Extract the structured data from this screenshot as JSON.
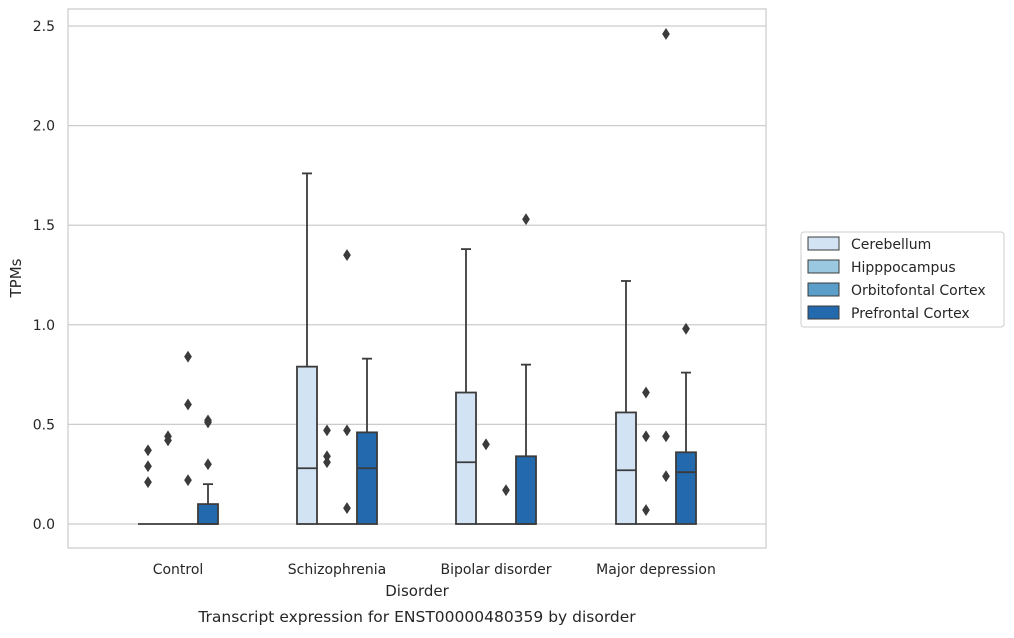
{
  "caption": "Transcript expression for ENST00000480359 by disorder",
  "chart_data": {
    "type": "box",
    "xlabel": "Disorder",
    "ylabel": "TPMs",
    "ylim": [
      -0.12,
      2.6
    ],
    "yticks": [
      "0.0",
      "0.5",
      "1.0",
      "1.5",
      "2.0",
      "2.5"
    ],
    "grid": true,
    "legend_position": "right",
    "categories": [
      "Control",
      "Schizophrenia",
      "Bipolar disorder",
      "Major depression"
    ],
    "series": [
      {
        "name": "Cerebellum",
        "color": "#d2e3f3",
        "boxes": [
          {
            "category": "Control",
            "whisker_low": 0,
            "q1": 0,
            "median": 0,
            "q3": 0,
            "whisker_high": 0,
            "outliers": [
              0.37,
              0.29,
              0.21
            ]
          },
          {
            "category": "Schizophrenia",
            "whisker_low": 0,
            "q1": 0,
            "median": 0.28,
            "q3": 0.79,
            "whisker_high": 1.76,
            "outliers": []
          },
          {
            "category": "Bipolar disorder",
            "whisker_low": 0,
            "q1": 0,
            "median": 0.31,
            "q3": 0.66,
            "whisker_high": 1.38,
            "outliers": []
          },
          {
            "category": "Major depression",
            "whisker_low": 0,
            "q1": 0,
            "median": 0.27,
            "q3": 0.56,
            "whisker_high": 1.22,
            "outliers": []
          }
        ]
      },
      {
        "name": "Hipppocampus",
        "color": "#9ac8e0",
        "boxes": [
          {
            "category": "Control",
            "whisker_low": 0,
            "q1": 0,
            "median": 0,
            "q3": 0,
            "whisker_high": 0,
            "outliers": [
              0.44,
              0.42
            ]
          },
          {
            "category": "Schizophrenia",
            "whisker_low": 0,
            "q1": 0,
            "median": 0,
            "q3": 0,
            "whisker_high": 0,
            "outliers": [
              0.47,
              0.34,
              0.31
            ]
          },
          {
            "category": "Bipolar disorder",
            "whisker_low": 0,
            "q1": 0,
            "median": 0,
            "q3": 0,
            "whisker_high": 0,
            "outliers": [
              0.4
            ]
          },
          {
            "category": "Major depression",
            "whisker_low": 0,
            "q1": 0,
            "median": 0,
            "q3": 0,
            "whisker_high": 0,
            "outliers": [
              0.66,
              0.44,
              0.07
            ]
          }
        ]
      },
      {
        "name": "Orbitofontal Cortex",
        "color": "#5a9ec9",
        "boxes": [
          {
            "category": "Control",
            "whisker_low": 0,
            "q1": 0,
            "median": 0,
            "q3": 0,
            "whisker_high": 0,
            "outliers": [
              0.84,
              0.6,
              0.22
            ]
          },
          {
            "category": "Schizophrenia",
            "whisker_low": 0,
            "q1": 0,
            "median": 0,
            "q3": 0,
            "whisker_high": 0,
            "outliers": [
              1.35,
              0.47,
              0.08
            ]
          },
          {
            "category": "Bipolar disorder",
            "whisker_low": 0,
            "q1": 0,
            "median": 0,
            "q3": 0,
            "whisker_high": 0,
            "outliers": [
              0.17
            ]
          },
          {
            "category": "Major depression",
            "whisker_low": 0,
            "q1": 0,
            "median": 0,
            "q3": 0,
            "whisker_high": 0,
            "outliers": [
              2.46,
              0.44,
              0.24
            ]
          }
        ]
      },
      {
        "name": "Prefrontal Cortex",
        "color": "#2369ad",
        "boxes": [
          {
            "category": "Control",
            "whisker_low": 0,
            "q1": 0,
            "median": 0,
            "q3": 0.1,
            "whisker_high": 0.2,
            "outliers": [
              0.52,
              0.51,
              0.3
            ]
          },
          {
            "category": "Schizophrenia",
            "whisker_low": 0,
            "q1": 0,
            "median": 0.28,
            "q3": 0.46,
            "whisker_high": 0.83,
            "outliers": []
          },
          {
            "category": "Bipolar disorder",
            "whisker_low": 0,
            "q1": 0,
            "median": 0,
            "q3": 0.34,
            "whisker_high": 0.8,
            "outliers": [
              1.53
            ]
          },
          {
            "category": "Major depression",
            "whisker_low": 0,
            "q1": 0,
            "median": 0.26,
            "q3": 0.36,
            "whisker_high": 0.76,
            "outliers": [
              0.98
            ]
          }
        ]
      }
    ]
  }
}
